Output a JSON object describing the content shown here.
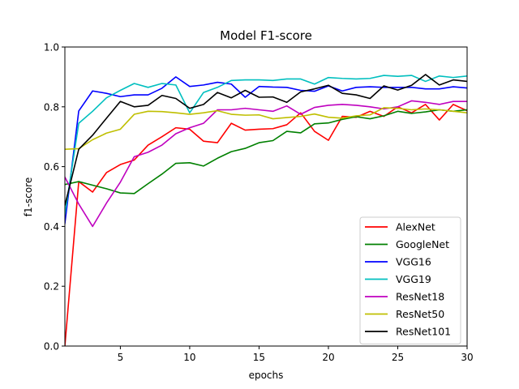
{
  "chart_data": {
    "type": "line",
    "title": "Model F1-score",
    "xlabel": "epochs",
    "ylabel": "f1-score",
    "xlim": [
      1,
      30
    ],
    "ylim": [
      0.0,
      1.0
    ],
    "xticks": [
      5,
      10,
      15,
      20,
      25,
      30
    ],
    "yticks": [
      0.0,
      0.2,
      0.4,
      0.6,
      0.8,
      1.0
    ],
    "ytick_labels": [
      "0.0",
      "0.2",
      "0.4",
      "0.6",
      "0.8",
      "1.0"
    ],
    "grid": false,
    "legend_position": "lower-right",
    "x": [
      1,
      2,
      3,
      4,
      5,
      6,
      7,
      8,
      9,
      10,
      11,
      12,
      13,
      14,
      15,
      16,
      17,
      18,
      19,
      20,
      21,
      22,
      23,
      24,
      25,
      26,
      27,
      28,
      29,
      30
    ],
    "series": [
      {
        "name": "AlexNet",
        "color": "#ff0000",
        "values": [
          0.0,
          0.55,
          0.515,
          0.58,
          0.607,
          0.622,
          0.672,
          0.7,
          0.73,
          0.725,
          0.685,
          0.68,
          0.745,
          0.722,
          0.725,
          0.727,
          0.74,
          0.78,
          0.718,
          0.688,
          0.768,
          0.765,
          0.785,
          0.768,
          0.8,
          0.78,
          0.808,
          0.756,
          0.808,
          0.787
        ]
      },
      {
        "name": "GoogleNet",
        "color": "#008000",
        "values": [
          0.54,
          0.55,
          0.538,
          0.526,
          0.512,
          0.51,
          0.543,
          0.575,
          0.611,
          0.613,
          0.602,
          0.628,
          0.65,
          0.661,
          0.68,
          0.687,
          0.718,
          0.713,
          0.743,
          0.746,
          0.758,
          0.767,
          0.76,
          0.77,
          0.785,
          0.778,
          0.783,
          0.79,
          0.785,
          0.79
        ]
      },
      {
        "name": "VGG16",
        "color": "#0000ff",
        "values": [
          0.41,
          0.786,
          0.853,
          0.845,
          0.834,
          0.84,
          0.84,
          0.862,
          0.9,
          0.868,
          0.873,
          0.882,
          0.876,
          0.832,
          0.868,
          0.866,
          0.865,
          0.855,
          0.852,
          0.87,
          0.853,
          0.865,
          0.867,
          0.865,
          0.865,
          0.865,
          0.86,
          0.86,
          0.867,
          0.863
        ]
      },
      {
        "name": "VGG19",
        "color": "#00bfbf",
        "values": [
          0.44,
          0.745,
          0.785,
          0.83,
          0.855,
          0.878,
          0.865,
          0.878,
          0.873,
          0.78,
          0.848,
          0.865,
          0.888,
          0.89,
          0.89,
          0.888,
          0.893,
          0.893,
          0.876,
          0.898,
          0.895,
          0.893,
          0.895,
          0.905,
          0.902,
          0.905,
          0.885,
          0.903,
          0.898,
          0.903
        ]
      },
      {
        "name": "ResNet18",
        "color": "#bf00bf",
        "values": [
          0.565,
          0.475,
          0.4,
          0.478,
          0.548,
          0.633,
          0.648,
          0.672,
          0.71,
          0.73,
          0.745,
          0.79,
          0.79,
          0.795,
          0.79,
          0.785,
          0.803,
          0.775,
          0.798,
          0.805,
          0.808,
          0.805,
          0.8,
          0.793,
          0.8,
          0.82,
          0.815,
          0.808,
          0.818,
          0.818
        ]
      },
      {
        "name": "ResNet50",
        "color": "#bfbf00",
        "values": [
          0.658,
          0.66,
          0.69,
          0.712,
          0.725,
          0.775,
          0.785,
          0.784,
          0.78,
          0.775,
          0.78,
          0.787,
          0.775,
          0.772,
          0.773,
          0.76,
          0.764,
          0.768,
          0.776,
          0.765,
          0.762,
          0.77,
          0.773,
          0.797,
          0.795,
          0.79,
          0.793,
          0.79,
          0.785,
          0.78
        ]
      },
      {
        "name": "ResNet101",
        "color": "#000000",
        "values": [
          0.47,
          0.658,
          0.705,
          0.762,
          0.818,
          0.8,
          0.805,
          0.838,
          0.828,
          0.795,
          0.808,
          0.848,
          0.83,
          0.855,
          0.832,
          0.833,
          0.815,
          0.85,
          0.86,
          0.872,
          0.845,
          0.84,
          0.828,
          0.87,
          0.856,
          0.872,
          0.908,
          0.873,
          0.89,
          0.885
        ]
      }
    ]
  }
}
